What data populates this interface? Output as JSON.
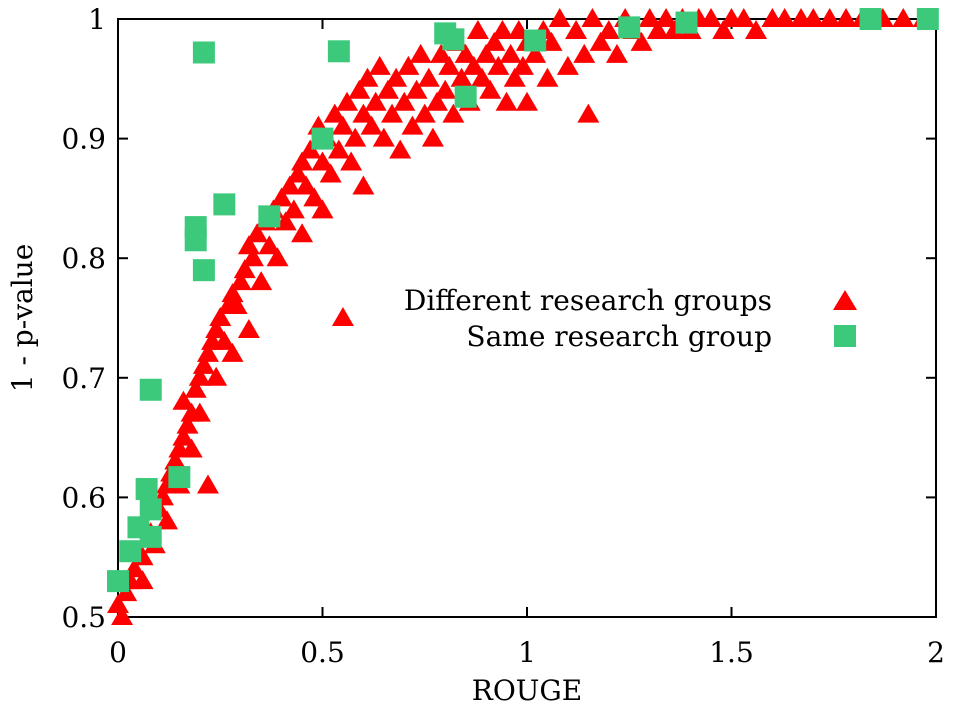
{
  "chart_data": {
    "type": "scatter",
    "title": "",
    "xlabel": "ROUGE",
    "ylabel": "1  -  p-value",
    "xlim": [
      0,
      2
    ],
    "ylim": [
      0.5,
      1
    ],
    "xticks": [
      "0",
      "0.5",
      "1",
      "1.5",
      "2"
    ],
    "yticks": [
      "0.5",
      "0.6",
      "0.7",
      "0.8",
      "0.9",
      "1"
    ],
    "grid": false,
    "legend_position": "right-center",
    "series": [
      {
        "name": "Different research groups",
        "marker": "triangle",
        "color": "#ff0000",
        "points": [
          [
            0.0,
            0.51
          ],
          [
            0.01,
            0.5
          ],
          [
            0.02,
            0.52
          ],
          [
            0.03,
            0.53
          ],
          [
            0.04,
            0.54
          ],
          [
            0.06,
            0.55
          ],
          [
            0.06,
            0.53
          ],
          [
            0.08,
            0.57
          ],
          [
            0.09,
            0.56
          ],
          [
            0.1,
            0.59
          ],
          [
            0.11,
            0.6
          ],
          [
            0.12,
            0.61
          ],
          [
            0.12,
            0.58
          ],
          [
            0.13,
            0.62
          ],
          [
            0.14,
            0.63
          ],
          [
            0.15,
            0.64
          ],
          [
            0.15,
            0.61
          ],
          [
            0.16,
            0.65
          ],
          [
            0.16,
            0.68
          ],
          [
            0.17,
            0.66
          ],
          [
            0.18,
            0.67
          ],
          [
            0.18,
            0.64
          ],
          [
            0.19,
            0.69
          ],
          [
            0.2,
            0.7
          ],
          [
            0.2,
            0.67
          ],
          [
            0.21,
            0.71
          ],
          [
            0.22,
            0.72
          ],
          [
            0.22,
            0.61
          ],
          [
            0.23,
            0.73
          ],
          [
            0.24,
            0.74
          ],
          [
            0.24,
            0.7
          ],
          [
            0.25,
            0.75
          ],
          [
            0.26,
            0.73
          ],
          [
            0.27,
            0.76
          ],
          [
            0.28,
            0.77
          ],
          [
            0.28,
            0.72
          ],
          [
            0.29,
            0.76
          ],
          [
            0.3,
            0.78
          ],
          [
            0.31,
            0.79
          ],
          [
            0.32,
            0.74
          ],
          [
            0.32,
            0.81
          ],
          [
            0.33,
            0.8
          ],
          [
            0.34,
            0.82
          ],
          [
            0.35,
            0.78
          ],
          [
            0.36,
            0.83
          ],
          [
            0.37,
            0.81
          ],
          [
            0.38,
            0.84
          ],
          [
            0.39,
            0.8
          ],
          [
            0.4,
            0.85
          ],
          [
            0.41,
            0.83
          ],
          [
            0.42,
            0.86
          ],
          [
            0.43,
            0.84
          ],
          [
            0.44,
            0.87
          ],
          [
            0.45,
            0.82
          ],
          [
            0.45,
            0.88
          ],
          [
            0.46,
            0.86
          ],
          [
            0.47,
            0.89
          ],
          [
            0.48,
            0.85
          ],
          [
            0.49,
            0.91
          ],
          [
            0.5,
            0.88
          ],
          [
            0.5,
            0.84
          ],
          [
            0.51,
            0.9
          ],
          [
            0.52,
            0.87
          ],
          [
            0.53,
            0.92
          ],
          [
            0.54,
            0.89
          ],
          [
            0.55,
            0.75
          ],
          [
            0.55,
            0.91
          ],
          [
            0.56,
            0.93
          ],
          [
            0.57,
            0.88
          ],
          [
            0.58,
            0.9
          ],
          [
            0.59,
            0.94
          ],
          [
            0.6,
            0.92
          ],
          [
            0.6,
            0.86
          ],
          [
            0.61,
            0.95
          ],
          [
            0.62,
            0.91
          ],
          [
            0.63,
            0.93
          ],
          [
            0.64,
            0.96
          ],
          [
            0.65,
            0.9
          ],
          [
            0.66,
            0.94
          ],
          [
            0.67,
            0.92
          ],
          [
            0.68,
            0.95
          ],
          [
            0.69,
            0.89
          ],
          [
            0.7,
            0.93
          ],
          [
            0.71,
            0.96
          ],
          [
            0.72,
            0.91
          ],
          [
            0.73,
            0.94
          ],
          [
            0.74,
            0.97
          ],
          [
            0.75,
            0.92
          ],
          [
            0.76,
            0.95
          ],
          [
            0.77,
            0.9
          ],
          [
            0.78,
            0.93
          ],
          [
            0.79,
            0.97
          ],
          [
            0.8,
            0.94
          ],
          [
            0.81,
            0.96
          ],
          [
            0.82,
            0.92
          ],
          [
            0.83,
            0.98
          ],
          [
            0.84,
            0.95
          ],
          [
            0.85,
            0.97
          ],
          [
            0.86,
            0.93
          ],
          [
            0.87,
            0.96
          ],
          [
            0.88,
            0.99
          ],
          [
            0.89,
            0.95
          ],
          [
            0.9,
            0.97
          ],
          [
            0.91,
            0.94
          ],
          [
            0.92,
            0.98
          ],
          [
            0.93,
            0.96
          ],
          [
            0.94,
            0.99
          ],
          [
            0.95,
            0.93
          ],
          [
            0.96,
            0.97
          ],
          [
            0.97,
            0.95
          ],
          [
            0.98,
            0.99
          ],
          [
            0.99,
            0.96
          ],
          [
            1.0,
            0.98
          ],
          [
            1.0,
            0.93
          ],
          [
            1.02,
            0.97
          ],
          [
            1.04,
            0.99
          ],
          [
            1.05,
            0.95
          ],
          [
            1.06,
            0.98
          ],
          [
            1.08,
            1.0
          ],
          [
            1.1,
            0.96
          ],
          [
            1.12,
            0.99
          ],
          [
            1.14,
            0.97
          ],
          [
            1.15,
            0.92
          ],
          [
            1.16,
            1.0
          ],
          [
            1.18,
            0.98
          ],
          [
            1.2,
            0.99
          ],
          [
            1.22,
            0.97
          ],
          [
            1.24,
            1.0
          ],
          [
            1.26,
            0.99
          ],
          [
            1.28,
            0.98
          ],
          [
            1.3,
            1.0
          ],
          [
            1.32,
            0.99
          ],
          [
            1.34,
            1.0
          ],
          [
            1.36,
            0.99
          ],
          [
            1.38,
            1.0
          ],
          [
            1.4,
            0.99
          ],
          [
            1.42,
            1.0
          ],
          [
            1.45,
            1.0
          ],
          [
            1.48,
            0.99
          ],
          [
            1.5,
            1.0
          ],
          [
            1.53,
            1.0
          ],
          [
            1.56,
            0.99
          ],
          [
            1.6,
            1.0
          ],
          [
            1.63,
            1.0
          ],
          [
            1.67,
            1.0
          ],
          [
            1.7,
            1.0
          ],
          [
            1.74,
            1.0
          ],
          [
            1.78,
            1.0
          ],
          [
            1.82,
            1.0
          ],
          [
            1.87,
            1.0
          ],
          [
            1.92,
            1.0
          ],
          [
            1.97,
            1.0
          ]
        ]
      },
      {
        "name": "Same research group",
        "marker": "square",
        "color": "#3cc97c",
        "points": [
          [
            0.0,
            0.53
          ],
          [
            0.03,
            0.555
          ],
          [
            0.05,
            0.575
          ],
          [
            0.07,
            0.607
          ],
          [
            0.08,
            0.59
          ],
          [
            0.08,
            0.567
          ],
          [
            0.08,
            0.69
          ],
          [
            0.15,
            0.617
          ],
          [
            0.19,
            0.826
          ],
          [
            0.19,
            0.815
          ],
          [
            0.21,
            0.79
          ],
          [
            0.21,
            0.972
          ],
          [
            0.26,
            0.845
          ],
          [
            0.37,
            0.835
          ],
          [
            0.5,
            0.9
          ],
          [
            0.54,
            0.973
          ],
          [
            0.8,
            0.988
          ],
          [
            0.82,
            0.983
          ],
          [
            0.85,
            0.935
          ],
          [
            1.02,
            0.982
          ],
          [
            1.25,
            0.993
          ],
          [
            1.39,
            0.997
          ],
          [
            1.84,
            1.0
          ],
          [
            1.98,
            1.0
          ]
        ]
      }
    ]
  }
}
